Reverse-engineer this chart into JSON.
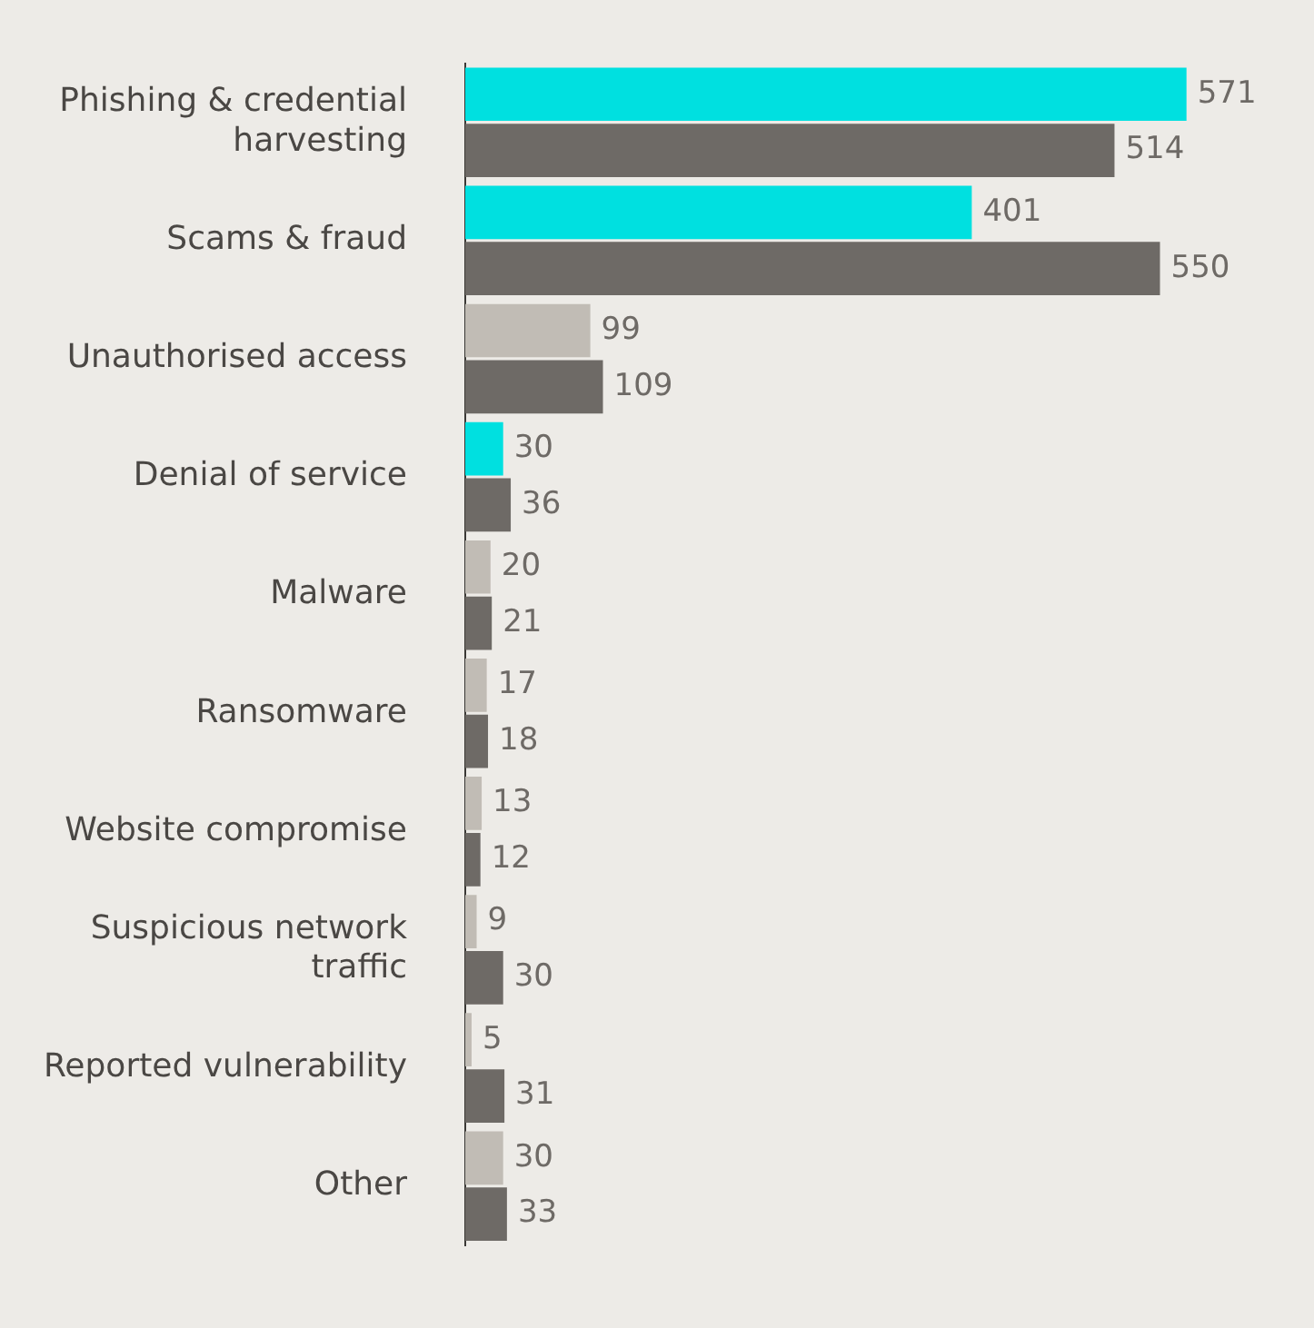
{
  "chart_data": {
    "type": "bar",
    "orientation": "horizontal",
    "categories": [
      "Phishing & credential harvesting",
      "Scams & fraud",
      "Unauthorised access",
      "Denial of service",
      "Malware",
      "Ransomware",
      "Website compromise",
      "Suspicious network traffic",
      "Reported vulnerability",
      "Other"
    ],
    "series": [
      {
        "colors": [
          "#00e0e0",
          "#00e0e0",
          "#c1bcb5",
          "#00e0e0",
          "#c1bcb5",
          "#c1bcb5",
          "#c1bcb5",
          "#c1bcb5",
          "#c1bcb5",
          "#c1bcb5"
        ],
        "values": [
          571,
          401,
          99,
          30,
          20,
          17,
          13,
          9,
          5,
          30
        ]
      },
      {
        "color": "#6e6a66",
        "values": [
          514,
          550,
          109,
          36,
          21,
          18,
          12,
          30,
          31,
          33
        ]
      }
    ],
    "data_labels": true
  }
}
